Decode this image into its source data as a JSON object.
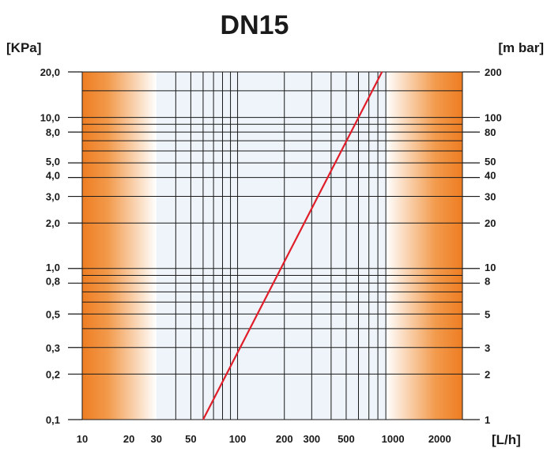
{
  "chart_data": {
    "type": "line",
    "title": "DN15",
    "xlabel": "[L/h]",
    "ylabel_left": "[KPa]",
    "ylabel_right": "[m bar]",
    "x_scale": "log",
    "y_scale": "log",
    "xlim": [
      10,
      2800
    ],
    "ylim": [
      0.1,
      20
    ],
    "x_ticks": [
      10,
      20,
      30,
      50,
      100,
      200,
      300,
      500,
      1000,
      2000
    ],
    "x_tick_labels": [
      "10",
      "20",
      "30",
      "50",
      "100",
      "200",
      "300",
      "500",
      "1000",
      "2000"
    ],
    "y_left_ticks": [
      0.1,
      0.2,
      0.3,
      0.5,
      0.8,
      1.0,
      2.0,
      3.0,
      4.0,
      5.0,
      8.0,
      10.0,
      20.0
    ],
    "y_left_tick_labels": [
      "0,1",
      "0,2",
      "0,3",
      "0,5",
      "0,8",
      "1,0",
      "2,0",
      "3,0",
      "4,0",
      "5,0",
      "8,0",
      "10,0",
      "20,0"
    ],
    "y_right_ticks": [
      0.1,
      0.2,
      0.3,
      0.5,
      0.8,
      1.0,
      2.0,
      3.0,
      4.0,
      5.0,
      8.0,
      10.0,
      20.0
    ],
    "y_right_tick_labels": [
      "1",
      "2",
      "3",
      "5",
      "8",
      "10",
      "20",
      "30",
      "40",
      "50",
      "80",
      "100",
      "200"
    ],
    "x_grid": [
      40,
      50,
      60,
      70,
      80,
      90,
      100,
      200,
      300,
      400,
      500,
      600,
      700,
      800,
      900
    ],
    "y_grid": [
      0.2,
      0.3,
      0.4,
      0.5,
      0.6,
      0.7,
      0.8,
      0.9,
      1,
      2,
      3,
      4,
      5,
      6,
      7,
      8,
      9,
      10,
      15
    ],
    "series": [
      {
        "values": [
          [
            60,
            0.1
          ],
          [
            850,
            20
          ]
        ]
      }
    ],
    "shaded_regions": [
      {
        "from": 10,
        "to": 30,
        "fade": "right"
      },
      {
        "from": 900,
        "to": 2800,
        "fade": "left"
      }
    ],
    "grid": true,
    "colors": {
      "line": "#e01e2a",
      "shade": "#f08a2e",
      "mid_band": "#eef4f9",
      "grid": "#1a1a1a"
    }
  }
}
